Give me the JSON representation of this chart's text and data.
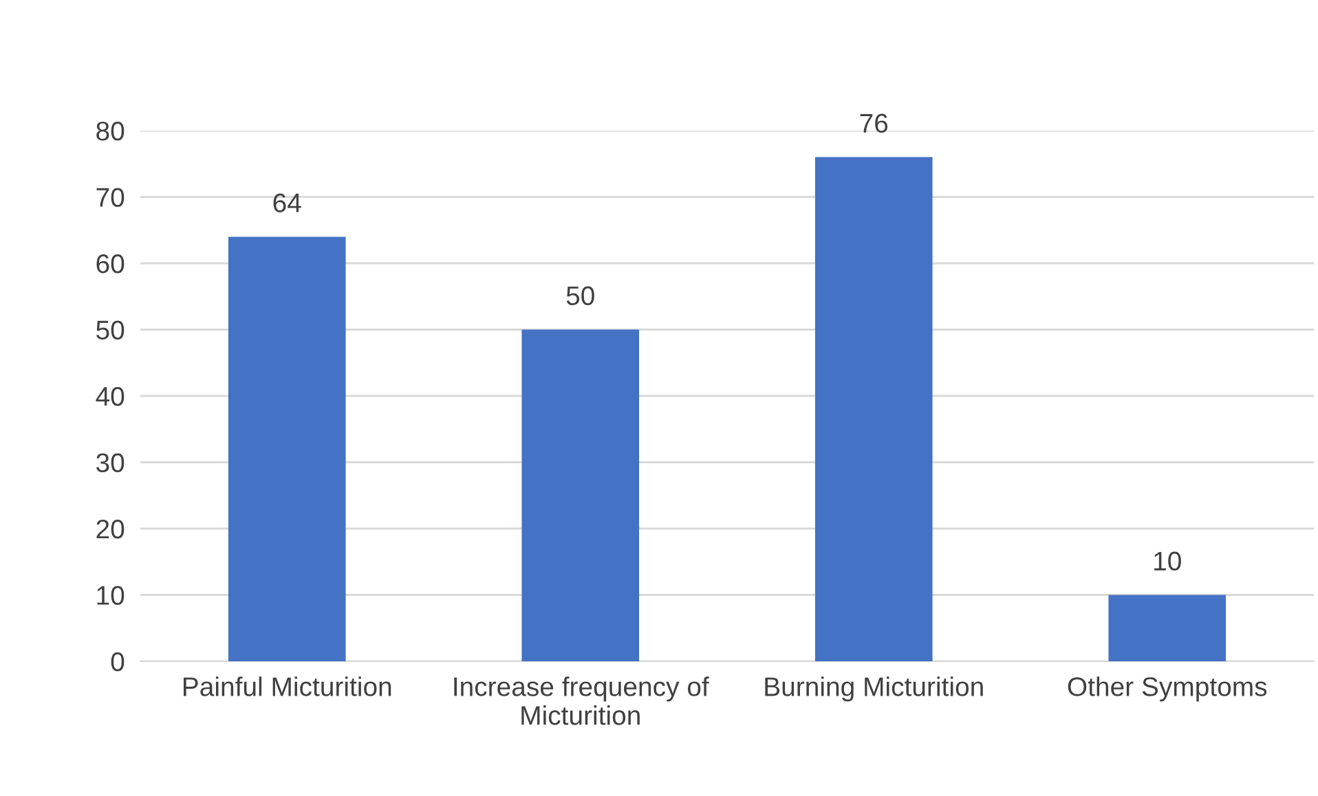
{
  "chart_data": {
    "type": "bar",
    "categories": [
      "Painful Micturition",
      "Increase frequency of Micturition",
      "Burning Micturition",
      "Other Symptoms"
    ],
    "values": [
      64,
      50,
      76,
      10
    ],
    "color": "#4472c4",
    "ylim": [
      0,
      80
    ],
    "yticks": [
      0,
      10,
      20,
      30,
      40,
      50,
      60,
      70,
      80
    ],
    "grid": "y",
    "data_labels": true
  }
}
